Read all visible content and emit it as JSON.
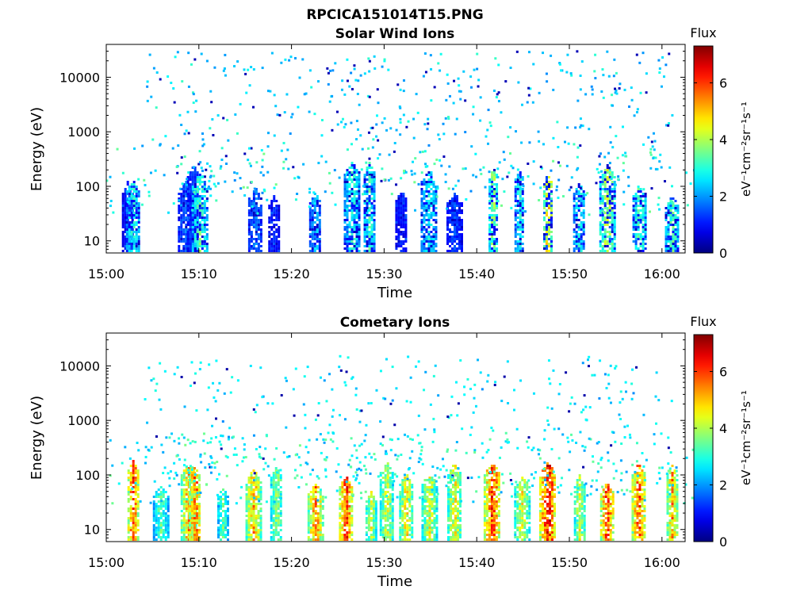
{
  "figure_title": "RPCICA151014T15.PNG",
  "colormap": "jet",
  "chart_data": [
    {
      "type": "heatmap",
      "title": "Solar Wind Ions",
      "xlabel": "Time",
      "ylabel": "Energy (eV)",
      "x_ticks": [
        "15:00",
        "15:10",
        "15:20",
        "15:30",
        "15:40",
        "15:50",
        "16:00"
      ],
      "xlim_minutes": [
        0,
        62.5
      ],
      "y_ticks": [
        "10",
        "100",
        "1000",
        "10000"
      ],
      "y_tick_values": [
        10,
        100,
        1000,
        10000
      ],
      "ylim": [
        6,
        40000
      ],
      "yscale": "log",
      "colorbar": {
        "title": "Flux",
        "label": "eV⁻¹cm⁻²sr⁻¹s⁻¹",
        "ticks": [
          "0",
          "2",
          "4",
          "6"
        ],
        "range": [
          0,
          7.3
        ]
      },
      "low_energy_bursts": [
        {
          "t": 2.2,
          "flux": 1.2
        },
        {
          "t": 2.8,
          "flux": 3.2
        },
        {
          "t": 8.5,
          "flux": 1.8
        },
        {
          "t": 9.3,
          "flux": 1.5
        },
        {
          "t": 10.0,
          "flux": 3.6
        },
        {
          "t": 16.0,
          "flux": 2.0
        },
        {
          "t": 18.0,
          "flux": 1.3
        },
        {
          "t": 22.5,
          "flux": 2.6
        },
        {
          "t": 26.5,
          "flux": 3.2
        },
        {
          "t": 28.3,
          "flux": 3.4
        },
        {
          "t": 31.8,
          "flux": 1.3
        },
        {
          "t": 34.8,
          "flux": 3.0
        },
        {
          "t": 37.5,
          "flux": 1.6
        },
        {
          "t": 41.7,
          "flux": 4.1
        },
        {
          "t": 44.5,
          "flux": 3.2
        },
        {
          "t": 47.6,
          "flux": 5.2
        },
        {
          "t": 51.0,
          "flux": 3.1
        },
        {
          "t": 54.0,
          "flux": 4.4
        },
        {
          "t": 57.5,
          "flux": 3.6
        },
        {
          "t": 61.0,
          "flux": 3.6
        }
      ]
    },
    {
      "type": "heatmap",
      "title": "Cometary Ions",
      "xlabel": "Time",
      "ylabel": "Energy (eV)",
      "x_ticks": [
        "15:00",
        "15:10",
        "15:20",
        "15:30",
        "15:40",
        "15:50",
        "16:00"
      ],
      "xlim_minutes": [
        0,
        62.5
      ],
      "y_ticks": [
        "10",
        "100",
        "1000",
        "10000"
      ],
      "y_tick_values": [
        10,
        100,
        1000,
        10000
      ],
      "ylim": [
        6,
        40000
      ],
      "yscale": "log",
      "colorbar": {
        "title": "Flux",
        "label": "eV⁻¹cm⁻²sr⁻¹s⁻¹",
        "ticks": [
          "0",
          "2",
          "4",
          "6"
        ],
        "range": [
          0,
          7.3
        ]
      },
      "low_energy_bursts": [
        {
          "t": 2.8,
          "flux": 6.3
        },
        {
          "t": 5.8,
          "flux": 3.6
        },
        {
          "t": 8.8,
          "flux": 5.6
        },
        {
          "t": 9.5,
          "flux": 6.1
        },
        {
          "t": 12.5,
          "flux": 3.6
        },
        {
          "t": 15.8,
          "flux": 5.4
        },
        {
          "t": 18.3,
          "flux": 4.2
        },
        {
          "t": 22.5,
          "flux": 5.8
        },
        {
          "t": 25.8,
          "flux": 6.4
        },
        {
          "t": 28.5,
          "flux": 4.5
        },
        {
          "t": 30.2,
          "flux": 4.6
        },
        {
          "t": 32.3,
          "flux": 5.0
        },
        {
          "t": 34.8,
          "flux": 4.6
        },
        {
          "t": 37.5,
          "flux": 4.9
        },
        {
          "t": 41.6,
          "flux": 6.5
        },
        {
          "t": 44.8,
          "flux": 4.7
        },
        {
          "t": 47.6,
          "flux": 6.9
        },
        {
          "t": 51.0,
          "flux": 4.6
        },
        {
          "t": 54.0,
          "flux": 6.5
        },
        {
          "t": 57.4,
          "flux": 6.2
        },
        {
          "t": 61.0,
          "flux": 5.6
        }
      ]
    }
  ]
}
